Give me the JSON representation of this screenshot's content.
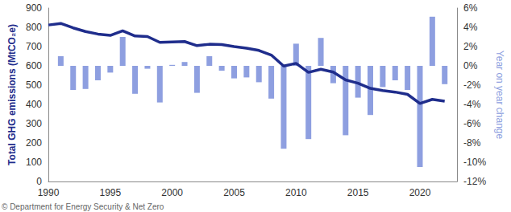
{
  "chart_data": {
    "type": "line",
    "ylabel": "Total GHG emissions (MtCO₂e)",
    "y2label": "Year on year change",
    "annotation": "© Department for Energy Security & Net Zero",
    "x": [
      1990,
      1991,
      1992,
      1993,
      1994,
      1995,
      1996,
      1997,
      1998,
      1999,
      2000,
      2001,
      2002,
      2003,
      2004,
      2005,
      2006,
      2007,
      2008,
      2009,
      2010,
      2011,
      2012,
      2013,
      2014,
      2015,
      2016,
      2017,
      2018,
      2019,
      2020,
      2021,
      2022
    ],
    "xlim": [
      1990,
      2023
    ],
    "xticks": [
      1990,
      1995,
      2000,
      2005,
      2010,
      2015,
      2020
    ],
    "ylim": [
      0,
      900
    ],
    "yticks": [
      0,
      100,
      200,
      300,
      400,
      500,
      600,
      700,
      800,
      900
    ],
    "y2lim": [
      -12,
      6
    ],
    "y2ticks": [
      {
        "value": -12,
        "label": "-12%"
      },
      {
        "value": -10,
        "label": "-10%"
      },
      {
        "value": -8,
        "label": "-8%"
      },
      {
        "value": -6,
        "label": "-6%"
      },
      {
        "value": -4,
        "label": "-4%"
      },
      {
        "value": -2,
        "label": "-2%"
      },
      {
        "value": 0,
        "label": "0%"
      },
      {
        "value": 2,
        "label": "2%"
      },
      {
        "value": 4,
        "label": "4%"
      },
      {
        "value": 6,
        "label": "6%"
      }
    ],
    "grid": false,
    "series": [
      {
        "type": "bar",
        "axis": "y2",
        "color": "#8e9fe0",
        "values": [
          null,
          1.0,
          -2.5,
          -2.4,
          -1.5,
          -0.7,
          3.0,
          -2.9,
          -0.3,
          -3.8,
          0.1,
          0.4,
          -2.8,
          1.0,
          -0.5,
          -1.3,
          -1.2,
          -1.7,
          -3.4,
          -8.6,
          2.3,
          -7.6,
          2.9,
          -1.8,
          -7.2,
          -3.3,
          -5.1,
          -2.2,
          -1.5,
          -2.5,
          -10.5,
          5.1,
          -1.9
        ]
      },
      {
        "type": "line",
        "color": "#1f2d8c",
        "values": [
          812,
          820,
          797,
          778,
          765,
          758,
          782,
          755,
          752,
          722,
          724,
          726,
          705,
          712,
          710,
          700,
          692,
          680,
          656,
          599,
          613,
          566,
          582,
          568,
          527,
          510,
          483,
          472,
          464,
          452,
          405,
          426,
          417
        ]
      }
    ]
  }
}
